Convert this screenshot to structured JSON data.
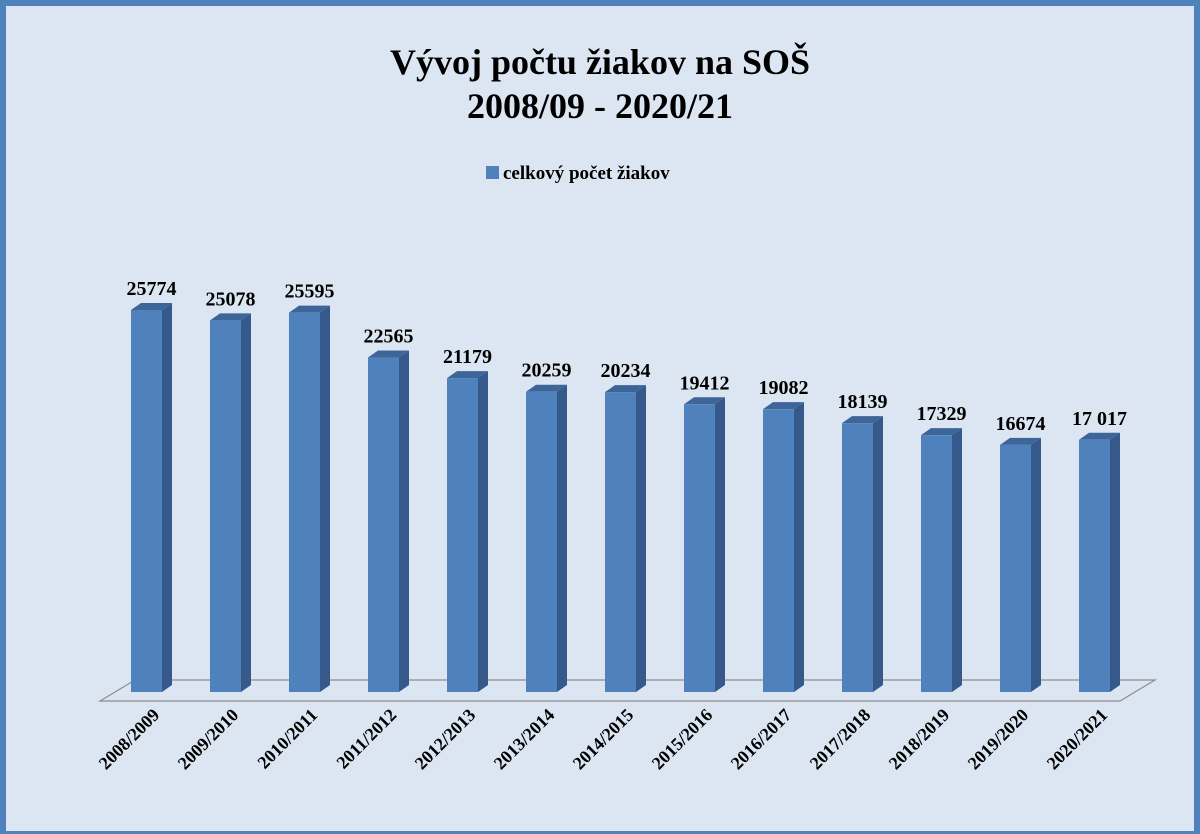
{
  "chart_data": {
    "type": "bar",
    "title": "Vývoj počtu žiakov na SOŠ",
    "subtitle": "2008/09 - 2020/21",
    "categories": [
      "2008/2009",
      "2009/2010",
      "2010/2011",
      "2011/2012",
      "2012/2013",
      "2013/2014",
      "2014/2015",
      "2015/2016",
      "2016/2017",
      "2017/2018",
      "2018/2019",
      "2019/2020",
      "2020/2021"
    ],
    "series": [
      {
        "name": "celkový počet žiakov",
        "color": "#4f81bd",
        "values": [
          25774,
          25078,
          25595,
          22565,
          21179,
          20259,
          20234,
          19412,
          19082,
          18139,
          17329,
          16674,
          17017
        ],
        "value_labels": [
          "25774",
          "25078",
          "25595",
          "22565",
          "21179",
          "20259",
          "20234",
          "19412",
          "19082",
          "18139",
          "17329",
          "16674",
          "17 017"
        ]
      }
    ]
  }
}
